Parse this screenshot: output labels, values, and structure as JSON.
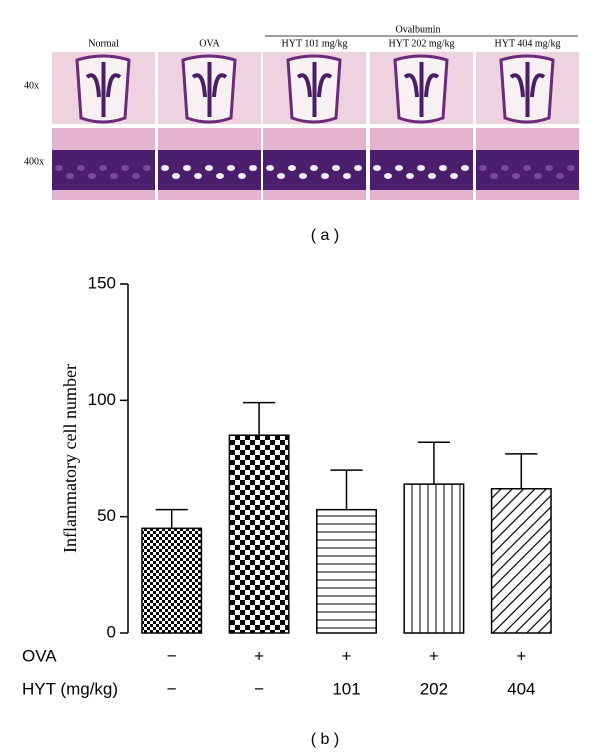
{
  "panel_a": {
    "group_label": "Ovalbumin",
    "columns": [
      "Normal",
      "OVA",
      "HYT 101 mg/kg",
      "HYT 202 mg/kg",
      "HYT 404 mg/kg"
    ],
    "rows": [
      "40x",
      "400x"
    ],
    "caption": "( a )"
  },
  "chart_data": {
    "type": "bar",
    "ylabel": "Inflammatory cell number",
    "values": [
      45,
      85,
      53,
      64,
      62
    ],
    "errors": [
      8,
      14,
      17,
      18,
      15
    ],
    "patterns": [
      "checker-small",
      "checker-large",
      "hlines",
      "vlines",
      "diagonal"
    ],
    "ylim": [
      0,
      150
    ],
    "yticks": [
      0,
      50,
      100,
      150
    ],
    "conditions": [
      {
        "label": "OVA",
        "values": [
          "−",
          "+",
          "+",
          "+",
          "+"
        ]
      },
      {
        "label": "HYT (mg/kg)",
        "values": [
          "−",
          "−",
          "101",
          "202",
          "404"
        ]
      }
    ],
    "caption": "( b )"
  }
}
